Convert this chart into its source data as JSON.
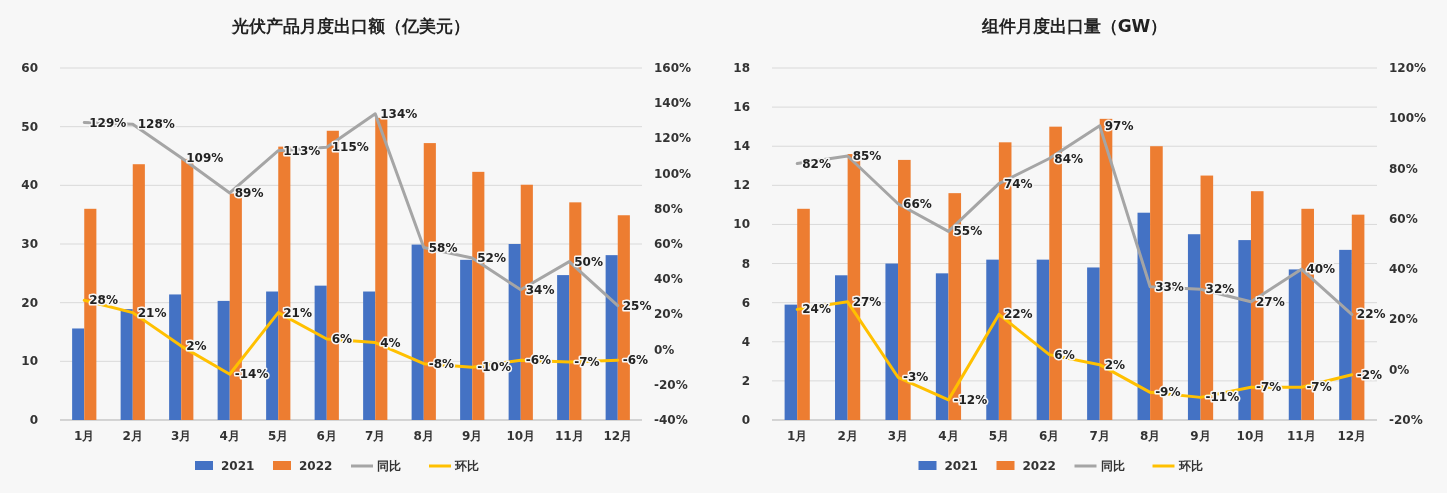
{
  "chart_data": [
    {
      "type": "bar",
      "title": "光伏产品月度出口额（亿美元）",
      "categories": [
        "1月",
        "2月",
        "3月",
        "4月",
        "5月",
        "6月",
        "7月",
        "8月",
        "9月",
        "10月",
        "11月",
        "12月"
      ],
      "series": [
        {
          "name": "2021",
          "color": "#4472c4",
          "values": [
            15.6,
            18.9,
            21.4,
            20.3,
            21.9,
            22.9,
            21.9,
            29.9,
            27.3,
            30,
            24.7,
            28.1
          ]
        },
        {
          "name": "2022",
          "color": "#ed7d31",
          "values": [
            36,
            43.6,
            44.5,
            38.6,
            46.6,
            49.3,
            51.5,
            47.2,
            42.3,
            40.1,
            37.1,
            34.9
          ]
        },
        {
          "name": "同比",
          "type": "line",
          "axis": "y2",
          "color": "#a5a5a5",
          "values": [
            129,
            128,
            109,
            89,
            113,
            115,
            134,
            58,
            52,
            34,
            50,
            25
          ],
          "value_labels": [
            "129%",
            "128%",
            "109%",
            "89%",
            "113%",
            "115%",
            "134%",
            "58%",
            "52%",
            "34%",
            "50%",
            "25%"
          ]
        },
        {
          "name": "环比",
          "type": "line",
          "axis": "y2",
          "color": "#ffc000",
          "values": [
            28,
            21,
            2,
            -14,
            21,
            6,
            4,
            -8,
            -10,
            -6,
            -7,
            -6
          ],
          "value_labels": [
            "28%",
            "21%",
            "2%",
            "-14%",
            "21%",
            "6%",
            "4%",
            "-8%",
            "-10%",
            "-6%",
            "-7%",
            "-6%"
          ]
        }
      ],
      "ylim": [
        0,
        60
      ],
      "yticks": [
        0,
        10,
        20,
        30,
        40,
        50,
        60
      ],
      "y2lim": [
        -40,
        160
      ],
      "y2ticks": [
        {
          "value": -40,
          "label": "-40%"
        },
        {
          "value": -20,
          "label": "-20%"
        },
        {
          "value": 0,
          "label": "0%"
        },
        {
          "value": 20,
          "label": "20%"
        },
        {
          "value": 40,
          "label": "40%"
        },
        {
          "value": 60,
          "label": "60%"
        },
        {
          "value": 80,
          "label": "80%"
        },
        {
          "value": 100,
          "label": "100%"
        },
        {
          "value": 120,
          "label": "120%"
        },
        {
          "value": 140,
          "label": "140%"
        },
        {
          "value": 160,
          "label": "160%"
        }
      ],
      "grid": "y",
      "legend": "bottom"
    },
    {
      "type": "bar",
      "title": "组件月度出口量（GW）",
      "categories": [
        "1月",
        "2月",
        "3月",
        "4月",
        "5月",
        "6月",
        "7月",
        "8月",
        "9月",
        "10月",
        "11月",
        "12月"
      ],
      "series": [
        {
          "name": "2021",
          "color": "#4472c4",
          "values": [
            5.9,
            7.4,
            8.0,
            7.5,
            8.2,
            8.2,
            7.8,
            10.6,
            9.5,
            9.2,
            7.7,
            8.7
          ]
        },
        {
          "name": "2022",
          "color": "#ed7d31",
          "values": [
            10.8,
            13.6,
            13.3,
            11.6,
            14.2,
            15.0,
            15.4,
            14.0,
            12.5,
            11.7,
            10.8,
            10.5
          ]
        },
        {
          "name": "同比",
          "type": "line",
          "axis": "y2",
          "color": "#a5a5a5",
          "values": [
            82,
            85,
            66,
            55,
            74,
            84,
            97,
            33,
            32,
            27,
            40,
            22
          ],
          "value_labels": [
            "82%",
            "85%",
            "66%",
            "55%",
            "74%",
            "84%",
            "97%",
            "33%",
            "32%",
            "27%",
            "40%",
            "22%"
          ]
        },
        {
          "name": "环比",
          "type": "line",
          "axis": "y2",
          "color": "#ffc000",
          "values": [
            24,
            27,
            -3,
            -12,
            22,
            6,
            2,
            -9,
            -11,
            -7,
            -7,
            -2
          ],
          "value_labels": [
            "24%",
            "27%",
            "-3%",
            "-12%",
            "22%",
            "6%",
            "2%",
            "-9%",
            "-11%",
            "-7%",
            "-7%",
            "-2%"
          ]
        }
      ],
      "ylim": [
        0,
        18
      ],
      "yticks": [
        0,
        2,
        4,
        6,
        8,
        10,
        12,
        14,
        16,
        18
      ],
      "y2lim": [
        -20,
        120
      ],
      "y2ticks": [
        {
          "value": -20,
          "label": "-20%"
        },
        {
          "value": 0,
          "label": "0%"
        },
        {
          "value": 20,
          "label": "20%"
        },
        {
          "value": 40,
          "label": "40%"
        },
        {
          "value": 60,
          "label": "60%"
        },
        {
          "value": 80,
          "label": "80%"
        },
        {
          "value": 100,
          "label": "100%"
        },
        {
          "value": 120,
          "label": "120%"
        }
      ],
      "grid": "y",
      "legend": "bottom"
    }
  ]
}
